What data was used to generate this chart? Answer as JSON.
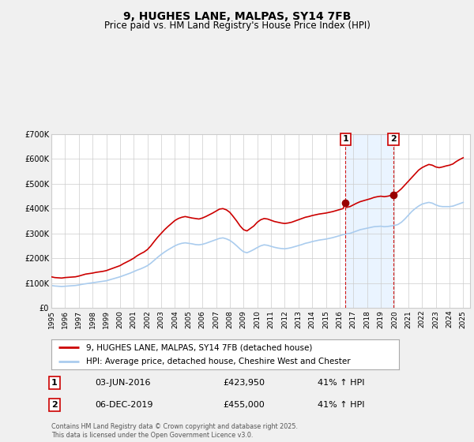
{
  "title": "9, HUGHES LANE, MALPAS, SY14 7FB",
  "subtitle": "Price paid vs. HM Land Registry's House Price Index (HPI)",
  "legend_line1": "9, HUGHES LANE, MALPAS, SY14 7FB (detached house)",
  "legend_line2": "HPI: Average price, detached house, Cheshire West and Chester",
  "footer": "Contains HM Land Registry data © Crown copyright and database right 2025.\nThis data is licensed under the Open Government Licence v3.0.",
  "sale1_date": "03-JUN-2016",
  "sale1_price": "£423,950",
  "sale1_hpi": "41% ↑ HPI",
  "sale2_date": "06-DEC-2019",
  "sale2_price": "£455,000",
  "sale2_hpi": "41% ↑ HPI",
  "sale1_x": 2016.42,
  "sale2_x": 2019.92,
  "sale1_y": 423950,
  "sale2_y": 455000,
  "vline1_x": 2016.42,
  "vline2_x": 2019.92,
  "ylim": [
    0,
    700000
  ],
  "xlim": [
    1995,
    2025.5
  ],
  "red_color": "#cc0000",
  "blue_color": "#aaccee",
  "background_color": "#f0f0f0",
  "plot_bg_color": "#ffffff",
  "grid_color": "#cccccc",
  "shade_color": "#ddeeff",
  "hpi_red_line": [
    [
      1995.0,
      125000
    ],
    [
      1995.25,
      122000
    ],
    [
      1995.5,
      121000
    ],
    [
      1995.75,
      120000
    ],
    [
      1996.0,
      122000
    ],
    [
      1996.25,
      123000
    ],
    [
      1996.5,
      124000
    ],
    [
      1996.75,
      125000
    ],
    [
      1997.0,
      128000
    ],
    [
      1997.25,
      132000
    ],
    [
      1997.5,
      136000
    ],
    [
      1997.75,
      138000
    ],
    [
      1998.0,
      140000
    ],
    [
      1998.25,
      143000
    ],
    [
      1998.5,
      145000
    ],
    [
      1998.75,
      147000
    ],
    [
      1999.0,
      150000
    ],
    [
      1999.25,
      155000
    ],
    [
      1999.5,
      160000
    ],
    [
      1999.75,
      165000
    ],
    [
      2000.0,
      170000
    ],
    [
      2000.25,
      178000
    ],
    [
      2000.5,
      185000
    ],
    [
      2000.75,
      192000
    ],
    [
      2001.0,
      200000
    ],
    [
      2001.25,
      210000
    ],
    [
      2001.5,
      218000
    ],
    [
      2001.75,
      225000
    ],
    [
      2002.0,
      235000
    ],
    [
      2002.25,
      250000
    ],
    [
      2002.5,
      268000
    ],
    [
      2002.75,
      285000
    ],
    [
      2003.0,
      300000
    ],
    [
      2003.25,
      315000
    ],
    [
      2003.5,
      328000
    ],
    [
      2003.75,
      340000
    ],
    [
      2004.0,
      352000
    ],
    [
      2004.25,
      360000
    ],
    [
      2004.5,
      365000
    ],
    [
      2004.75,
      368000
    ],
    [
      2005.0,
      365000
    ],
    [
      2005.25,
      362000
    ],
    [
      2005.5,
      360000
    ],
    [
      2005.75,
      358000
    ],
    [
      2006.0,
      362000
    ],
    [
      2006.25,
      368000
    ],
    [
      2006.5,
      375000
    ],
    [
      2006.75,
      382000
    ],
    [
      2007.0,
      390000
    ],
    [
      2007.25,
      398000
    ],
    [
      2007.5,
      400000
    ],
    [
      2007.75,
      395000
    ],
    [
      2008.0,
      385000
    ],
    [
      2008.25,
      368000
    ],
    [
      2008.5,
      350000
    ],
    [
      2008.75,
      330000
    ],
    [
      2009.0,
      315000
    ],
    [
      2009.25,
      310000
    ],
    [
      2009.5,
      320000
    ],
    [
      2009.75,
      330000
    ],
    [
      2010.0,
      345000
    ],
    [
      2010.25,
      355000
    ],
    [
      2010.5,
      360000
    ],
    [
      2010.75,
      358000
    ],
    [
      2011.0,
      353000
    ],
    [
      2011.25,
      348000
    ],
    [
      2011.5,
      345000
    ],
    [
      2011.75,
      342000
    ],
    [
      2012.0,
      340000
    ],
    [
      2012.25,
      342000
    ],
    [
      2012.5,
      345000
    ],
    [
      2012.75,
      350000
    ],
    [
      2013.0,
      355000
    ],
    [
      2013.25,
      360000
    ],
    [
      2013.5,
      365000
    ],
    [
      2013.75,
      368000
    ],
    [
      2014.0,
      372000
    ],
    [
      2014.25,
      375000
    ],
    [
      2014.5,
      378000
    ],
    [
      2014.75,
      380000
    ],
    [
      2015.0,
      382000
    ],
    [
      2015.25,
      385000
    ],
    [
      2015.5,
      388000
    ],
    [
      2015.75,
      392000
    ],
    [
      2016.0,
      396000
    ],
    [
      2016.25,
      400000
    ],
    [
      2016.42,
      423950
    ],
    [
      2016.5,
      405000
    ],
    [
      2016.75,
      408000
    ],
    [
      2017.0,
      415000
    ],
    [
      2017.25,
      422000
    ],
    [
      2017.5,
      428000
    ],
    [
      2017.75,
      432000
    ],
    [
      2018.0,
      436000
    ],
    [
      2018.25,
      440000
    ],
    [
      2018.5,
      445000
    ],
    [
      2018.75,
      448000
    ],
    [
      2019.0,
      450000
    ],
    [
      2019.25,
      448000
    ],
    [
      2019.5,
      450000
    ],
    [
      2019.75,
      453000
    ],
    [
      2019.92,
      455000
    ],
    [
      2020.0,
      460000
    ],
    [
      2020.25,
      468000
    ],
    [
      2020.5,
      480000
    ],
    [
      2020.75,
      495000
    ],
    [
      2021.0,
      510000
    ],
    [
      2021.25,
      525000
    ],
    [
      2021.5,
      540000
    ],
    [
      2021.75,
      555000
    ],
    [
      2022.0,
      565000
    ],
    [
      2022.25,
      572000
    ],
    [
      2022.5,
      578000
    ],
    [
      2022.75,
      575000
    ],
    [
      2023.0,
      568000
    ],
    [
      2023.25,
      565000
    ],
    [
      2023.5,
      568000
    ],
    [
      2023.75,
      572000
    ],
    [
      2024.0,
      575000
    ],
    [
      2024.25,
      580000
    ],
    [
      2024.5,
      590000
    ],
    [
      2024.75,
      598000
    ],
    [
      2025.0,
      605000
    ]
  ],
  "hpi_blue_line": [
    [
      1995.0,
      90000
    ],
    [
      1995.25,
      88000
    ],
    [
      1995.5,
      87000
    ],
    [
      1995.75,
      86000
    ],
    [
      1996.0,
      87000
    ],
    [
      1996.25,
      88000
    ],
    [
      1996.5,
      89000
    ],
    [
      1996.75,
      90000
    ],
    [
      1997.0,
      92000
    ],
    [
      1997.25,
      95000
    ],
    [
      1997.5,
      97000
    ],
    [
      1997.75,
      99000
    ],
    [
      1998.0,
      101000
    ],
    [
      1998.25,
      103000
    ],
    [
      1998.5,
      105000
    ],
    [
      1998.75,
      107000
    ],
    [
      1999.0,
      109000
    ],
    [
      1999.25,
      113000
    ],
    [
      1999.5,
      117000
    ],
    [
      1999.75,
      121000
    ],
    [
      2000.0,
      125000
    ],
    [
      2000.25,
      130000
    ],
    [
      2000.5,
      135000
    ],
    [
      2000.75,
      140000
    ],
    [
      2001.0,
      146000
    ],
    [
      2001.25,
      152000
    ],
    [
      2001.5,
      157000
    ],
    [
      2001.75,
      163000
    ],
    [
      2002.0,
      170000
    ],
    [
      2002.25,
      180000
    ],
    [
      2002.5,
      192000
    ],
    [
      2002.75,
      204000
    ],
    [
      2003.0,
      215000
    ],
    [
      2003.25,
      225000
    ],
    [
      2003.5,
      234000
    ],
    [
      2003.75,
      242000
    ],
    [
      2004.0,
      250000
    ],
    [
      2004.25,
      256000
    ],
    [
      2004.5,
      260000
    ],
    [
      2004.75,
      262000
    ],
    [
      2005.0,
      260000
    ],
    [
      2005.25,
      258000
    ],
    [
      2005.5,
      255000
    ],
    [
      2005.75,
      254000
    ],
    [
      2006.0,
      256000
    ],
    [
      2006.25,
      260000
    ],
    [
      2006.5,
      265000
    ],
    [
      2006.75,
      270000
    ],
    [
      2007.0,
      275000
    ],
    [
      2007.25,
      280000
    ],
    [
      2007.5,
      282000
    ],
    [
      2007.75,
      278000
    ],
    [
      2008.0,
      272000
    ],
    [
      2008.25,
      262000
    ],
    [
      2008.5,
      250000
    ],
    [
      2008.75,
      237000
    ],
    [
      2009.0,
      226000
    ],
    [
      2009.25,
      222000
    ],
    [
      2009.5,
      228000
    ],
    [
      2009.75,
      235000
    ],
    [
      2010.0,
      243000
    ],
    [
      2010.25,
      250000
    ],
    [
      2010.5,
      254000
    ],
    [
      2010.75,
      252000
    ],
    [
      2011.0,
      248000
    ],
    [
      2011.25,
      244000
    ],
    [
      2011.5,
      241000
    ],
    [
      2011.75,
      239000
    ],
    [
      2012.0,
      238000
    ],
    [
      2012.25,
      240000
    ],
    [
      2012.5,
      243000
    ],
    [
      2012.75,
      247000
    ],
    [
      2013.0,
      251000
    ],
    [
      2013.25,
      255000
    ],
    [
      2013.5,
      260000
    ],
    [
      2013.75,
      263000
    ],
    [
      2014.0,
      267000
    ],
    [
      2014.25,
      270000
    ],
    [
      2014.5,
      273000
    ],
    [
      2014.75,
      275000
    ],
    [
      2015.0,
      277000
    ],
    [
      2015.25,
      280000
    ],
    [
      2015.5,
      283000
    ],
    [
      2015.75,
      287000
    ],
    [
      2016.0,
      291000
    ],
    [
      2016.25,
      295000
    ],
    [
      2016.5,
      298000
    ],
    [
      2016.75,
      300000
    ],
    [
      2017.0,
      305000
    ],
    [
      2017.25,
      310000
    ],
    [
      2017.5,
      315000
    ],
    [
      2017.75,
      318000
    ],
    [
      2018.0,
      321000
    ],
    [
      2018.25,
      324000
    ],
    [
      2018.5,
      327000
    ],
    [
      2018.75,
      328000
    ],
    [
      2019.0,
      329000
    ],
    [
      2019.25,
      327000
    ],
    [
      2019.5,
      328000
    ],
    [
      2019.75,
      330000
    ],
    [
      2020.0,
      332000
    ],
    [
      2020.25,
      336000
    ],
    [
      2020.5,
      345000
    ],
    [
      2020.75,
      358000
    ],
    [
      2021.0,
      373000
    ],
    [
      2021.25,
      388000
    ],
    [
      2021.5,
      400000
    ],
    [
      2021.75,
      410000
    ],
    [
      2022.0,
      418000
    ],
    [
      2022.25,
      422000
    ],
    [
      2022.5,
      425000
    ],
    [
      2022.75,
      422000
    ],
    [
      2023.0,
      415000
    ],
    [
      2023.25,
      410000
    ],
    [
      2023.5,
      408000
    ],
    [
      2023.75,
      408000
    ],
    [
      2024.0,
      408000
    ],
    [
      2024.25,
      410000
    ],
    [
      2024.5,
      415000
    ],
    [
      2024.75,
      420000
    ],
    [
      2025.0,
      425000
    ]
  ]
}
